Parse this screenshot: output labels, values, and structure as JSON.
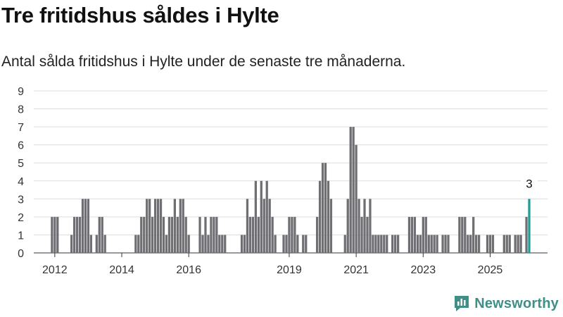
{
  "header": {
    "title": "Tre fritidshus såldes i Hylte",
    "subtitle": "Antal sålda fritidshus i Hylte under de senaste tre månaderna."
  },
  "brand": {
    "name": "Newsworthy",
    "icon": "newsworthy-logo-icon",
    "color": "#3f8f86"
  },
  "chart_data": {
    "type": "bar",
    "title": "Tre fritidshus såldes i Hylte",
    "subtitle": "Antal sålda fritidshus i Hylte under de senaste tre månaderna.",
    "xlabel": "",
    "ylabel": "",
    "ylim": [
      0,
      9
    ],
    "yticks": [
      "0",
      "1",
      "2",
      "3",
      "4",
      "5",
      "6",
      "7",
      "8",
      "9"
    ],
    "xticks": [
      {
        "label": "2012",
        "index": 5
      },
      {
        "label": "2014",
        "index": 29
      },
      {
        "label": "2016",
        "index": 53
      },
      {
        "label": "2019",
        "index": 89
      },
      {
        "label": "2021",
        "index": 113
      },
      {
        "label": "2023",
        "index": 137
      },
      {
        "label": "2025",
        "index": 161
      }
    ],
    "grid": true,
    "colors": {
      "bar": "#6e6e73",
      "highlight": "#1a9e96",
      "grid": "#dddddd",
      "axis": "#333333"
    },
    "highlight_annotation": "3",
    "values": [
      0,
      0,
      0,
      0,
      2,
      2,
      2,
      0,
      0,
      0,
      0,
      1,
      2,
      2,
      2,
      3,
      3,
      3,
      1,
      0,
      1,
      2,
      2,
      1,
      0,
      0,
      0,
      0,
      0,
      0,
      0,
      0,
      0,
      0,
      1,
      1,
      2,
      2,
      3,
      3,
      2,
      3,
      3,
      3,
      2,
      1,
      2,
      2,
      3,
      2,
      3,
      3,
      2,
      1,
      0,
      0,
      0,
      2,
      1,
      2,
      1,
      2,
      2,
      2,
      1,
      1,
      1,
      0,
      0,
      0,
      0,
      0,
      1,
      1,
      3,
      2,
      2,
      4,
      2,
      4,
      3,
      4,
      3,
      2,
      1,
      0,
      0,
      1,
      1,
      2,
      2,
      2,
      1,
      0,
      1,
      1,
      0,
      0,
      0,
      2,
      4,
      5,
      5,
      4,
      3,
      0,
      0,
      0,
      0,
      1,
      3,
      7,
      7,
      6,
      3,
      2,
      3,
      2,
      3,
      1,
      1,
      1,
      1,
      1,
      1,
      0,
      1,
      1,
      1,
      0,
      0,
      0,
      2,
      2,
      2,
      1,
      1,
      2,
      2,
      1,
      1,
      1,
      1,
      0,
      1,
      1,
      1,
      0,
      0,
      0,
      2,
      2,
      2,
      1,
      1,
      2,
      1,
      1,
      0,
      0,
      1,
      1,
      1,
      0,
      0,
      0,
      1,
      1,
      1,
      0,
      1,
      1,
      1,
      0,
      2,
      3
    ]
  }
}
